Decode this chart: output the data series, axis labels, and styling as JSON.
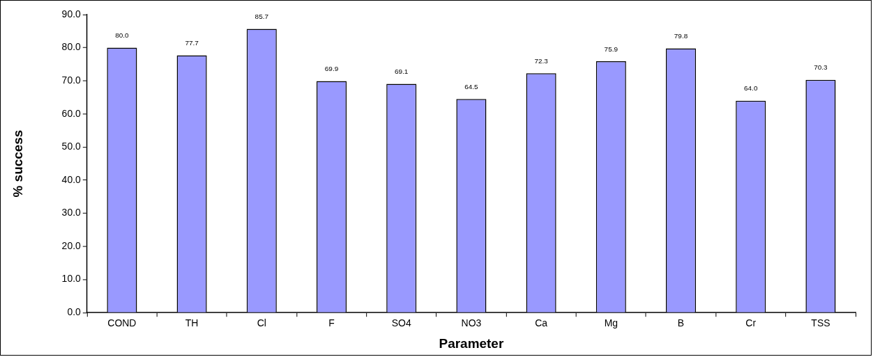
{
  "chart_data": {
    "type": "bar",
    "xlabel": "Parameter",
    "ylabel": "% success",
    "categories": [
      "COND",
      "TH",
      "Cl",
      "F",
      "SO4",
      "NO3",
      "Ca",
      "Mg",
      "B",
      "Cr",
      "TSS"
    ],
    "values": [
      80.0,
      77.7,
      85.7,
      69.9,
      69.1,
      64.5,
      72.3,
      75.9,
      79.8,
      64.0,
      70.3
    ],
    "value_labels": [
      "80.0",
      "77.7",
      "85.7",
      "69.9",
      "69.1",
      "64.5",
      "72.3",
      "75.9",
      "79.8",
      "64.0",
      "70.3"
    ],
    "color": "#9999ff",
    "ylim": [
      0,
      90
    ],
    "yticks": [
      {
        "value": 0,
        "label": "0.0"
      },
      {
        "value": 10,
        "label": "10.0"
      },
      {
        "value": 20,
        "label": "20.0"
      },
      {
        "value": 30,
        "label": "30.0"
      },
      {
        "value": 40,
        "label": "40.0"
      },
      {
        "value": 50,
        "label": "50.0"
      },
      {
        "value": 60,
        "label": "60.0"
      },
      {
        "value": 70,
        "label": "70.0"
      },
      {
        "value": 80,
        "label": "80.0"
      },
      {
        "value": 90,
        "label": "90.0"
      }
    ],
    "grid": false,
    "legend": false
  }
}
